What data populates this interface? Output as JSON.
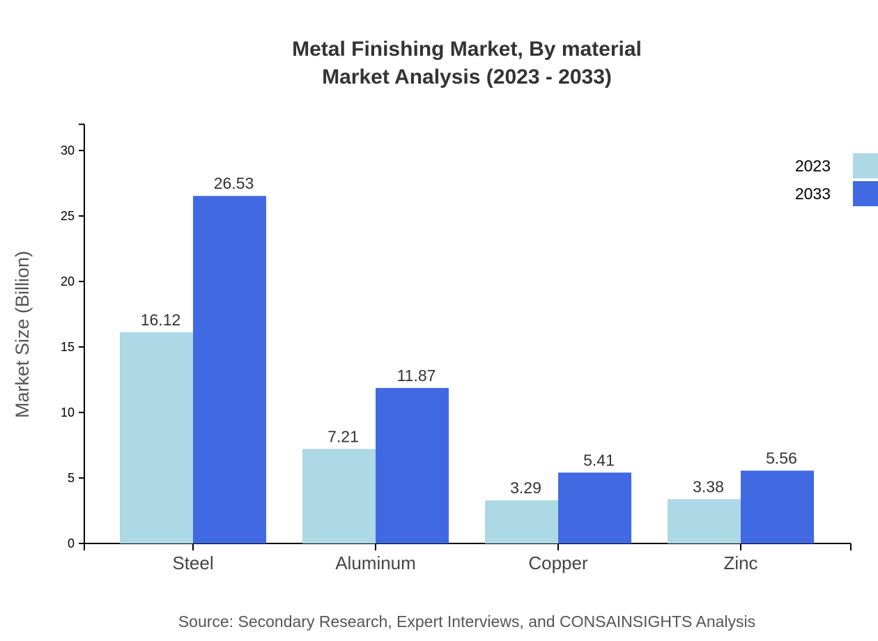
{
  "chart_data": {
    "type": "bar",
    "title": "Metal Finishing Market, By material",
    "subtitle": "Market Analysis (2023 - 2033)",
    "xlabel": "",
    "ylabel": "Market Size (Billion)",
    "ylim": [
      0,
      32
    ],
    "yticks": [
      0,
      5,
      10,
      15,
      20,
      25,
      30
    ],
    "categories": [
      "Steel",
      "Aluminum",
      "Copper",
      "Zinc"
    ],
    "series": [
      {
        "name": "2023",
        "color": "#ADD8E6",
        "values": [
          16.12,
          7.21,
          3.29,
          3.38
        ]
      },
      {
        "name": "2033",
        "color": "#4169E1",
        "values": [
          26.53,
          11.87,
          5.41,
          5.56
        ]
      }
    ],
    "grid": false,
    "legend_position": "top-right",
    "source": "Source: Secondary Research, Expert Interviews, and CONSAINSIGHTS Analysis"
  }
}
